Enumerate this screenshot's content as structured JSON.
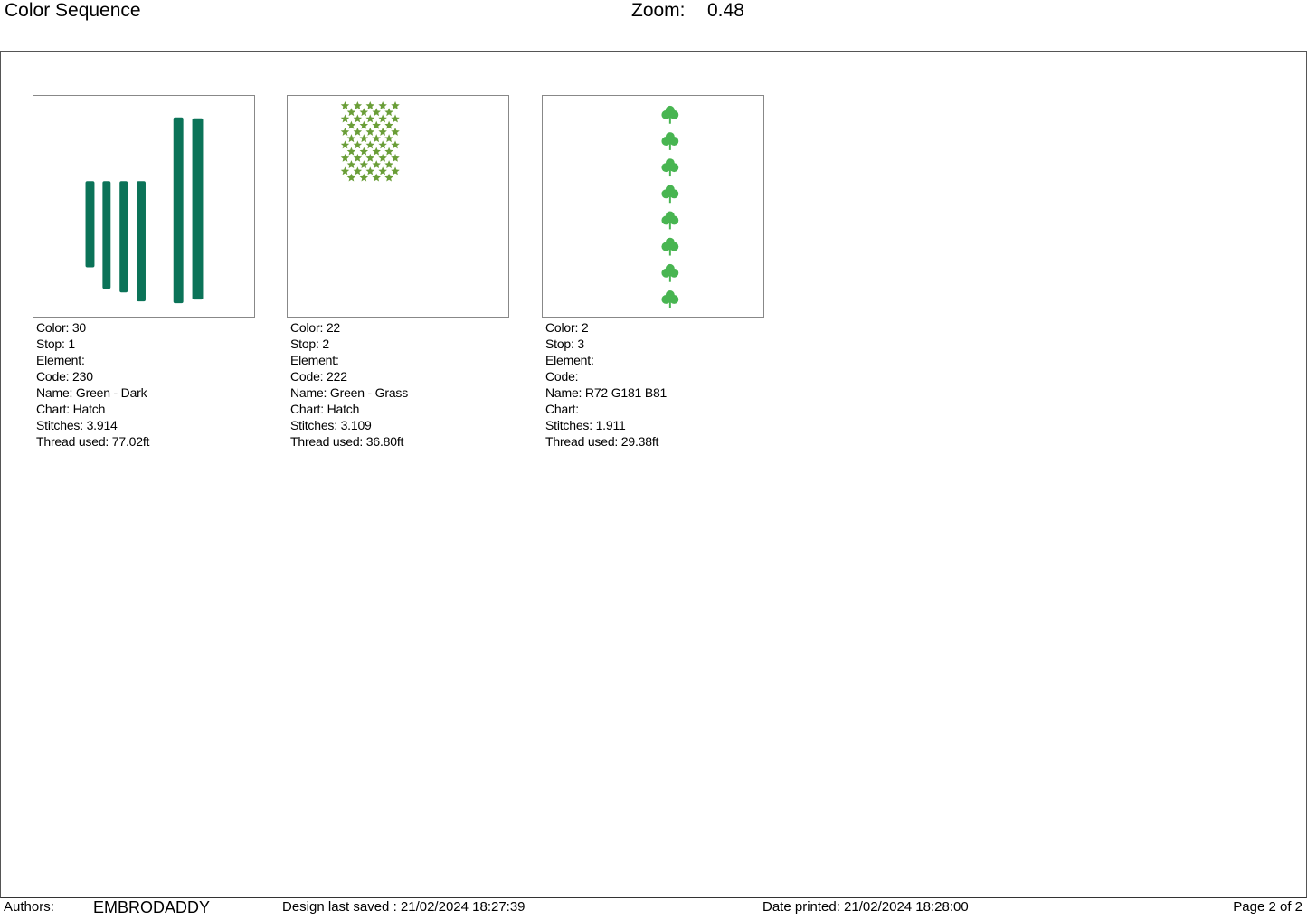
{
  "header": {
    "title": "Color Sequence",
    "zoom_label": "Zoom:",
    "zoom_value": "0.48"
  },
  "colors": [
    {
      "lines": [
        "Color: 30",
        "Stop: 1",
        "Element:",
        "Code: 230",
        "Name: Green - Dark",
        "Chart: Hatch",
        "Stitches: 3.914",
        "Thread used: 77.02ft"
      ],
      "thread_color": "#0b7358",
      "icon": "vertical-stripes"
    },
    {
      "lines": [
        "Color: 22",
        "Stop: 2",
        "Element:",
        "Code: 222",
        "Name: Green - Grass",
        "Chart: Hatch",
        "Stitches: 3.109",
        "Thread used: 36.80ft"
      ],
      "thread_color": "#6a9e38",
      "icon": "star-grid"
    },
    {
      "lines": [
        "Color: 2",
        "Stop: 3",
        "Element:",
        "Code:",
        "Name: R72 G181 B81",
        "Chart:",
        "Stitches: 1.911",
        "Thread used: 29.38ft"
      ],
      "thread_color": "#48b551",
      "icon": "shamrock-column"
    }
  ],
  "footer": {
    "authors_label": "Authors:",
    "authors_value": "EMBRODADDY",
    "saved": "Design last saved : 21/02/2024 18:27:39",
    "printed": "Date printed: 21/02/2024 18:28:00",
    "page": "Page 2 of 2"
  }
}
